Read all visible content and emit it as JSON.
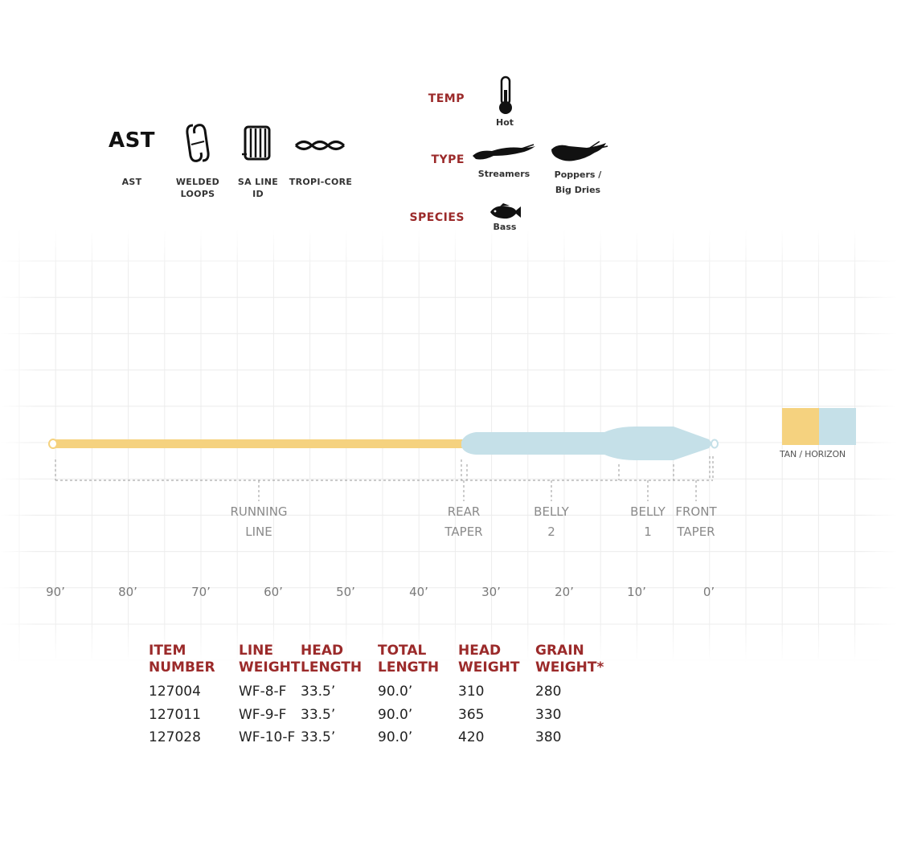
{
  "features": [
    {
      "icon": "ast-logo-icon",
      "icon_text": "AST",
      "label": "AST"
    },
    {
      "icon": "welded-loops-icon",
      "label": "WELDED\nLOOPS"
    },
    {
      "icon": "line-id-icon",
      "label": "SA LINE\nID"
    },
    {
      "icon": "tropi-core-icon",
      "label": "TROPI-CORE"
    }
  ],
  "conditions": {
    "temp": {
      "label": "TEMP",
      "items": [
        {
          "icon": "thermometer-icon",
          "caption": "Hot"
        }
      ]
    },
    "type": {
      "label": "TYPE",
      "items": [
        {
          "icon": "streamer-fly-icon",
          "caption": "Streamers"
        },
        {
          "icon": "popper-fly-icon",
          "caption": "Poppers /\nBig Dries"
        }
      ]
    },
    "species": {
      "label": "SPECIES",
      "items": [
        {
          "icon": "bass-fish-icon",
          "caption": "Bass"
        }
      ]
    }
  },
  "profile": {
    "sections": [
      {
        "name": "running-line",
        "label": "RUNNING\nLINE"
      },
      {
        "name": "rear-taper",
        "label": "REAR\nTAPER"
      },
      {
        "name": "belly-2",
        "label": "BELLY\n2"
      },
      {
        "name": "belly-1",
        "label": "BELLY\n1"
      },
      {
        "name": "front-taper",
        "label": "FRONT\nTAPER"
      }
    ],
    "ticks": [
      "90’",
      "80’",
      "70’",
      "60’",
      "50’",
      "40’",
      "30’",
      "20’",
      "10’",
      "0’"
    ],
    "colors": {
      "running_line": "#f5d27f",
      "head": "#c5e0e8"
    }
  },
  "swatch": {
    "label": "TAN / HORIZON",
    "colors": [
      "#f5d27f",
      "#c5e0e8"
    ]
  },
  "specs": {
    "headers": [
      "ITEM\nNUMBER",
      "LINE\nWEIGHT",
      "HEAD\nLENGTH",
      "TOTAL\nLENGTH",
      "HEAD\nWEIGHT",
      "GRAIN\nWEIGHT*"
    ],
    "rows": [
      [
        "127004",
        "WF-8-F",
        "33.5’",
        "90.0’",
        "310",
        "280"
      ],
      [
        "127011",
        "WF-9-F",
        "33.5’",
        "90.0’",
        "365",
        "330"
      ],
      [
        "127028",
        "WF-10-F",
        "33.5’",
        "90.0’",
        "420",
        "380"
      ]
    ]
  },
  "accent_color": "#9b2a2a"
}
